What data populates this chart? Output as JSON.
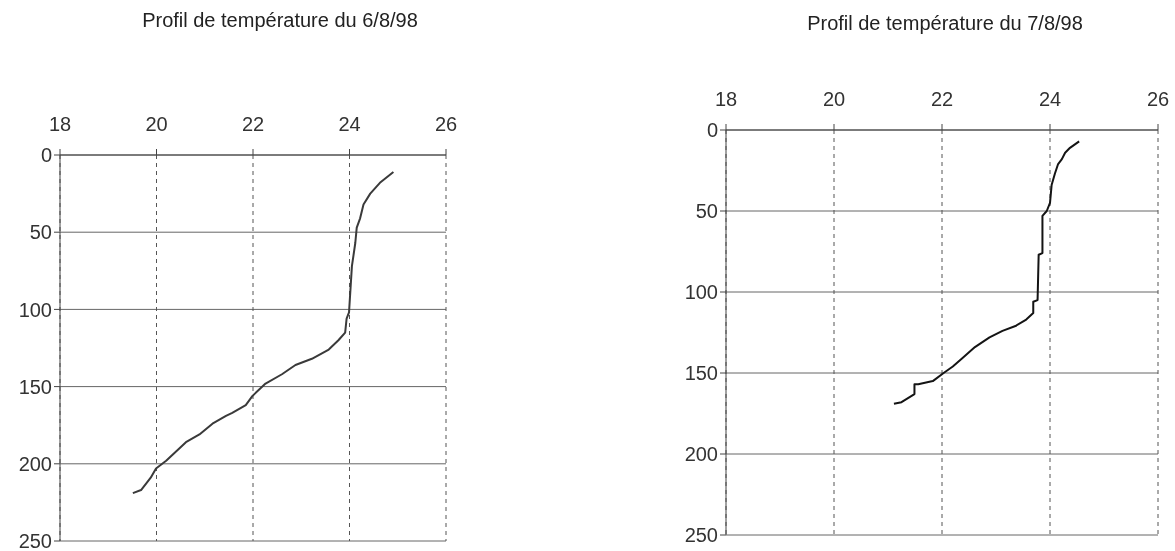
{
  "chart_data": [
    {
      "type": "line",
      "title": "Profil de température du 6/8/98",
      "x": [
        24.91,
        24.63,
        24.43,
        24.29,
        24.22,
        24.15,
        24.12,
        24.05,
        23.99,
        23.94,
        23.91,
        23.77,
        23.57,
        23.22,
        22.88,
        22.6,
        22.26,
        21.99,
        21.85,
        21.57,
        21.44,
        21.16,
        20.89,
        20.61,
        20.2,
        19.99,
        19.88,
        19.68,
        19.51
      ],
      "series": [
        {
          "color": "#3a3a3a",
          "values": [
            11,
            18,
            25,
            32,
            41,
            47,
            57,
            72,
            102,
            106,
            115,
            120,
            126,
            132,
            136,
            142,
            148,
            156,
            162,
            167,
            169,
            174,
            181,
            186,
            198,
            203,
            209,
            217,
            219
          ]
        }
      ],
      "xlim": [
        18,
        26
      ],
      "xticks": [
        18,
        20,
        22,
        24,
        26
      ],
      "ylim": [
        250,
        0
      ],
      "yticks": [
        0,
        50,
        100,
        150,
        200,
        250
      ],
      "grid": true,
      "marker": "none"
    },
    {
      "type": "line",
      "title": "Profil de température du 7/8/98",
      "x": [
        24.54,
        24.37,
        24.28,
        24.22,
        24.15,
        24.09,
        24.03,
        24.0,
        23.94,
        23.86,
        23.86,
        23.79,
        23.77,
        23.69,
        23.69,
        23.56,
        23.36,
        23.12,
        22.88,
        22.61,
        22.37,
        22.2,
        22.03,
        21.83,
        21.56,
        21.49,
        21.49,
        21.25,
        21.11
      ],
      "series": [
        {
          "color": "#141414",
          "values": [
            7,
            11,
            14,
            18,
            21,
            27,
            34,
            45,
            50,
            53,
            76,
            77,
            105,
            106,
            113,
            117,
            121,
            124,
            128,
            134,
            141,
            146,
            150,
            155,
            157,
            157,
            163,
            168,
            169
          ]
        }
      ],
      "xlim": [
        18,
        26
      ],
      "xticks": [
        18,
        20,
        22,
        24,
        26
      ],
      "ylim": [
        250,
        0
      ],
      "yticks": [
        0,
        50,
        100,
        150,
        200,
        250
      ],
      "grid": true,
      "marker": "none"
    }
  ]
}
